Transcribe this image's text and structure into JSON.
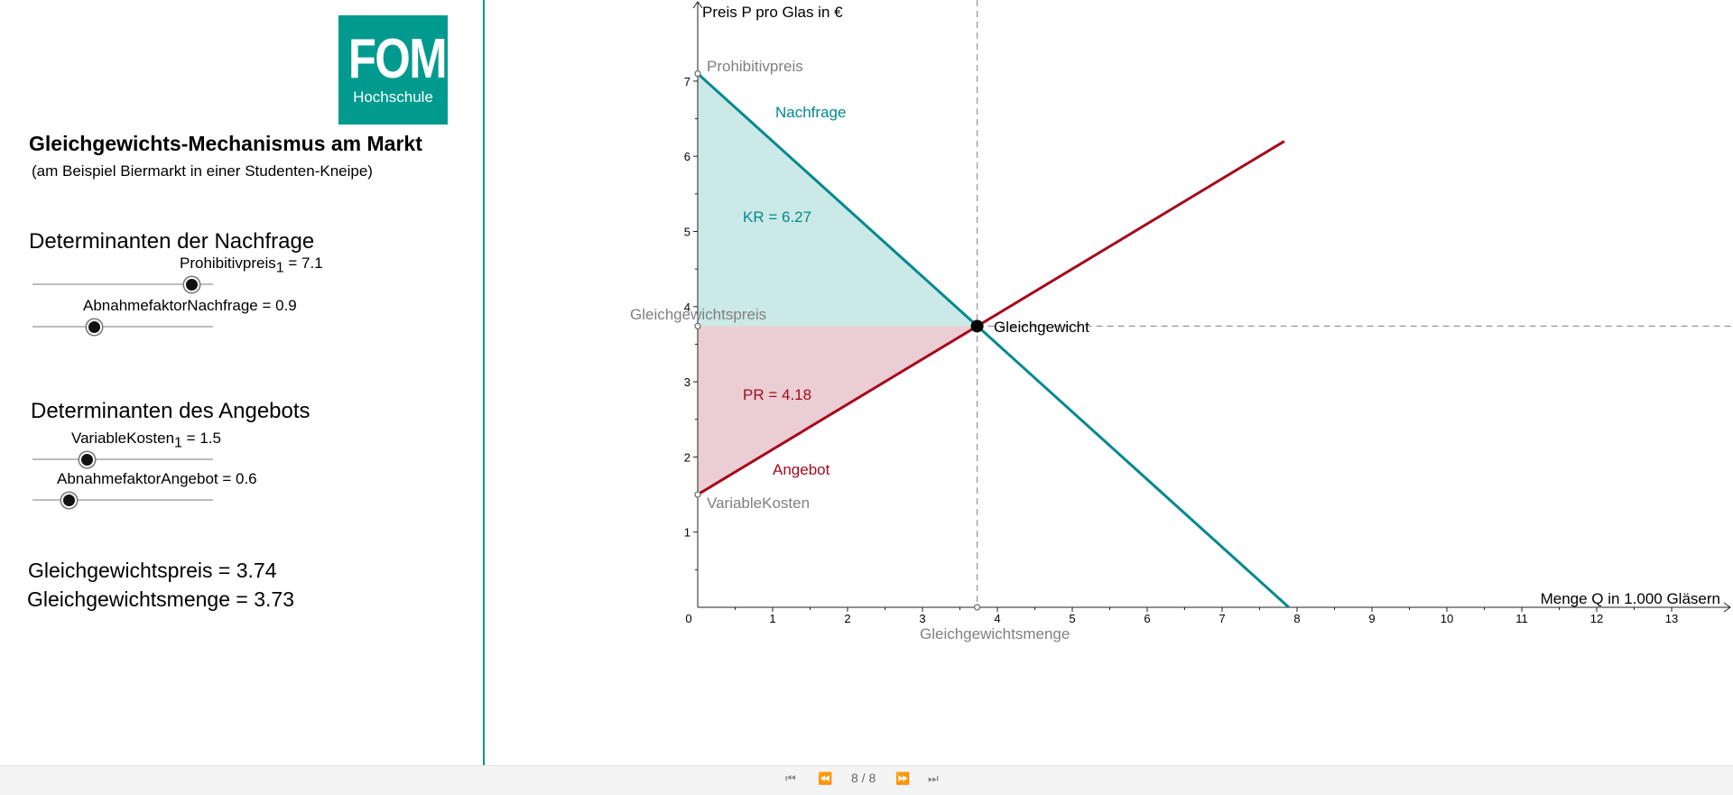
{
  "logo": {
    "text": "FOM",
    "subtext": "Hochschule"
  },
  "title": "Gleichgewichts-Mechanismus am Markt",
  "subtitle": "(am Beispiel Biermarkt in einer Studenten-Kneipe)",
  "demand_section": {
    "heading": "Determinanten der Nachfrage",
    "sliders": [
      {
        "name": "Prohibitivpreis",
        "subscript": "1",
        "value_text": " = 7.1",
        "fraction": 0.88
      },
      {
        "name": "AbnahmefaktorNachfrage",
        "subscript": "",
        "value_text": " = 0.9",
        "fraction": 0.34
      }
    ]
  },
  "supply_section": {
    "heading": "Determinanten des Angebots",
    "sliders": [
      {
        "name": "VariableKosten",
        "subscript": "1",
        "value_text": " = 1.5",
        "fraction": 0.3
      },
      {
        "name": "AbnahmefaktorAngebot",
        "subscript": "",
        "value_text": " = 0.6",
        "fraction": 0.2
      }
    ]
  },
  "results": {
    "price": "Gleichgewichtspreis = 3.74",
    "quantity": "Gleichgewichtsmenge = 3.73"
  },
  "colors": {
    "demand": "#00898f",
    "demand_fill": "#cbe9e7",
    "supply": "#a50a1e",
    "supply_fill": "#ebced3",
    "accent": "#009a8e"
  },
  "chart_data": {
    "type": "line",
    "xlabel": "Menge Q in 1.000 Gläsern",
    "ylabel": "Preis P pro Glas in €",
    "xlim": [
      0,
      13
    ],
    "ylim": [
      0,
      7
    ],
    "x_ticks": [
      "0",
      "1",
      "2",
      "3",
      "4",
      "5",
      "6",
      "7",
      "8",
      "9",
      "10",
      "11",
      "12",
      "13"
    ],
    "y_ticks": [
      "1",
      "2",
      "3",
      "4",
      "5",
      "6",
      "7"
    ],
    "series": [
      {
        "name": "Nachfrage",
        "points": [
          [
            0,
            7.1
          ],
          [
            7.89,
            0
          ]
        ]
      },
      {
        "name": "Angebot",
        "points": [
          [
            0,
            1.5
          ],
          [
            7.83,
            6.2
          ]
        ]
      }
    ],
    "equilibrium": {
      "label": "Gleichgewicht",
      "x": 3.73,
      "y": 3.74
    },
    "point_labels": {
      "prohibitivpreis": "Prohibitivpreis",
      "variablekosten": "VariableKosten",
      "gleichgewichtspreis": "Gleichgewichtspreis",
      "gleichgewichtsmenge": "Gleichgewichtsmenge"
    },
    "areas": {
      "kr": "KR = 6.27",
      "pr": "PR = 4.18"
    },
    "grid": false
  },
  "navigation": {
    "page": "8 / 8"
  }
}
